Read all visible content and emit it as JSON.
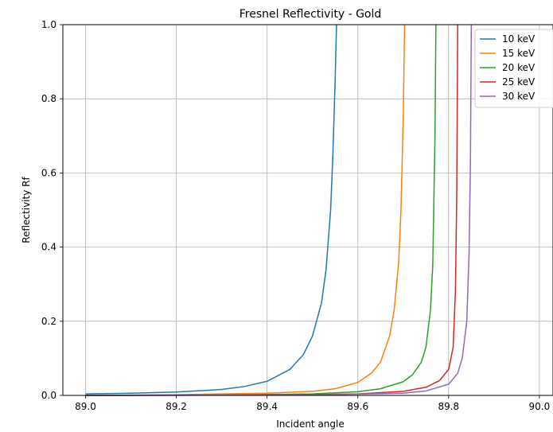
{
  "chart_data": {
    "type": "line",
    "title": "Fresnel Reflectivity - Gold",
    "xlabel": "Incident angle",
    "ylabel": "Reflectivity Rf",
    "xlim": [
      88.95,
      90.03
    ],
    "ylim": [
      0.0,
      1.0
    ],
    "xticks": [
      "89.0",
      "89.2",
      "89.4",
      "89.6",
      "89.8",
      "90.0"
    ],
    "yticks": [
      "0.0",
      "0.2",
      "0.4",
      "0.6",
      "0.8",
      "1.0"
    ],
    "grid": true,
    "legend_position": "top-right",
    "series": [
      {
        "name": "10 keV",
        "color": "#1f77b4",
        "x": [
          89.0,
          89.1,
          89.2,
          89.3,
          89.35,
          89.4,
          89.45,
          89.48,
          89.5,
          89.52,
          89.53,
          89.54,
          89.545,
          89.55,
          89.553
        ],
        "y": [
          0.004,
          0.006,
          0.009,
          0.016,
          0.024,
          0.038,
          0.07,
          0.11,
          0.16,
          0.25,
          0.34,
          0.5,
          0.65,
          0.85,
          1.0
        ]
      },
      {
        "name": "15 keV",
        "color": "#ff7f0e",
        "x": [
          89.0,
          89.2,
          89.4,
          89.5,
          89.55,
          89.6,
          89.63,
          89.65,
          89.67,
          89.68,
          89.69,
          89.695,
          89.7,
          89.703
        ],
        "y": [
          0.0,
          0.002,
          0.006,
          0.011,
          0.018,
          0.035,
          0.06,
          0.09,
          0.16,
          0.23,
          0.36,
          0.5,
          0.75,
          1.0
        ]
      },
      {
        "name": "20 keV",
        "color": "#2ca02c",
        "x": [
          89.0,
          89.3,
          89.5,
          89.6,
          89.65,
          89.7,
          89.72,
          89.74,
          89.75,
          89.76,
          89.765,
          89.77,
          89.772
        ],
        "y": [
          0.0,
          0.001,
          0.004,
          0.01,
          0.018,
          0.037,
          0.055,
          0.09,
          0.13,
          0.23,
          0.35,
          0.7,
          1.0
        ]
      },
      {
        "name": "25 keV",
        "color": "#d62728",
        "x": [
          89.0,
          89.4,
          89.6,
          89.7,
          89.75,
          89.78,
          89.8,
          89.81,
          89.815,
          89.818,
          89.82
        ],
        "y": [
          0.0,
          0.001,
          0.004,
          0.011,
          0.022,
          0.04,
          0.07,
          0.13,
          0.28,
          0.55,
          1.0
        ]
      },
      {
        "name": "30 keV",
        "color": "#9467bd",
        "x": [
          89.0,
          89.5,
          89.7,
          89.75,
          89.8,
          89.82,
          89.83,
          89.84,
          89.845,
          89.848,
          89.85
        ],
        "y": [
          0.0,
          0.001,
          0.006,
          0.012,
          0.03,
          0.06,
          0.1,
          0.2,
          0.38,
          0.62,
          1.0
        ]
      }
    ]
  }
}
